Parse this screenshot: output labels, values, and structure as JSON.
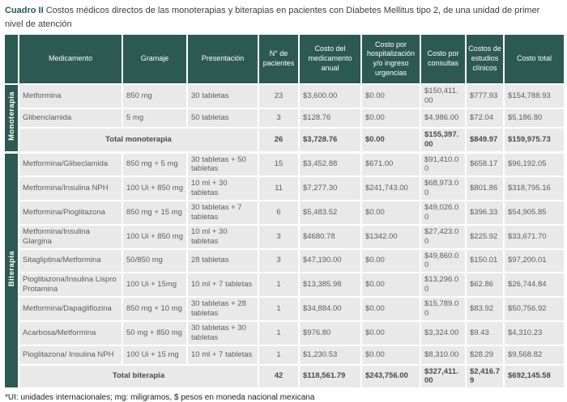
{
  "caption": {
    "label": "Cuadro II",
    "text": "Costos médicos directos de las monoterapias y biterapias en pacientes con Diabetes Mellitus tipo 2, de una unidad de primer nivel de atención"
  },
  "columns": [
    "Medicamento",
    "Gramaje",
    "Presentación",
    "N° de pacientes",
    "Costo del medicamento anual",
    "Costo por hospitalización y/o ingreso urgencias",
    "Costo por consultas",
    "Costos de estudios clínicos",
    "Costo total"
  ],
  "groups": [
    {
      "label": "Monoterapia",
      "rows": [
        {
          "medicamento": "Metformina",
          "gramaje": "850 mg",
          "presentacion": "30 tabletas",
          "pacientes": "23",
          "costo_medicamento": "$3,600.00",
          "costo_hospitalizacion": "$0.00",
          "costo_consultas": "$150,411.00",
          "costo_estudios": "$777.93",
          "costo_total": "$154,788.93"
        },
        {
          "medicamento": "Glibenclamida",
          "gramaje": "5 mg",
          "presentacion": "50 tabletas",
          "pacientes": "3",
          "costo_medicamento": "$128.76",
          "costo_hospitalizacion": "$0.00",
          "costo_consultas": "$4,986.00",
          "costo_estudios": "$72.04",
          "costo_total": "$5,186.80"
        }
      ],
      "total": {
        "label": "Total monoterapia",
        "pacientes": "26",
        "costo_medicamento": "$3,728.76",
        "costo_hospitalizacion": "$0.00",
        "costo_consultas": "$155,397.00",
        "costo_estudios": "$849.97",
        "costo_total": "$159,975.73"
      }
    },
    {
      "label": "Biterapia",
      "rows": [
        {
          "medicamento": "Metformina/Glibeclamida",
          "gramaje": "850 mg + 5 mg",
          "presentacion": "30 tabletas + 50 tabletas",
          "pacientes": "15",
          "costo_medicamento": "$3,452.88",
          "costo_hospitalizacion": "$671.00",
          "costo_consultas": "$91,410.00",
          "costo_estudios": "$658.17",
          "costo_total": "$96,192.05"
        },
        {
          "medicamento": "Metformina/Insulina NPH",
          "gramaje": "100 Ui + 850 mg",
          "presentacion": "10 ml + 30 tabletas",
          "pacientes": "11",
          "costo_medicamento": "$7,277.30",
          "costo_hospitalizacion": "$241,743.00",
          "costo_consultas": "$68,973.00",
          "costo_estudios": "$801.86",
          "costo_total": "$318,795.16"
        },
        {
          "medicamento": "Metformina/Pioglitazona",
          "gramaje": "850 mg + 15 mg",
          "presentacion": "30 tabletas + 7 tabletas",
          "pacientes": "6",
          "costo_medicamento": "$5,483.52",
          "costo_hospitalizacion": "$0.00",
          "costo_consultas": "$49,026.00",
          "costo_estudios": "$396.33",
          "costo_total": "$54,905.85"
        },
        {
          "medicamento": "Metformina/Insulina Glargina",
          "gramaje": "100 Ui + 850 mg",
          "presentacion": "10 ml + 30 tabletas",
          "pacientes": "3",
          "costo_medicamento": "$4680.78",
          "costo_hospitalizacion": "$1342.00",
          "costo_consultas": "$27,423.00",
          "costo_estudios": "$225.92",
          "costo_total": "$33,671.70"
        },
        {
          "medicamento": "Sitagliptina/Metformina",
          "gramaje": "50/850 mg",
          "presentacion": "28 tabletas",
          "pacientes": "3",
          "costo_medicamento": "$47,190.00",
          "costo_hospitalizacion": "$0.00",
          "costo_consultas": "$49,860.00",
          "costo_estudios": "$150.01",
          "costo_total": "$97,200.01"
        },
        {
          "medicamento": "Pioglitazona/Insulina Lispro Protamina",
          "gramaje": "100 Ui + 15mg",
          "presentacion": "10 ml + 7 tabletas",
          "pacientes": "1",
          "costo_medicamento": "$13,385.98",
          "costo_hospitalizacion": "$0.00",
          "costo_consultas": "$13,296.00",
          "costo_estudios": "$62.86",
          "costo_total": "$26,744.84"
        },
        {
          "medicamento": "Metformina/Dapagliflozina",
          "gramaje": "850 mg + 10 mg",
          "presentacion": "30 tabletas + 28 tabletas",
          "pacientes": "1",
          "costo_medicamento": "$34,884.00",
          "costo_hospitalizacion": "$0.00",
          "costo_consultas": "$15,789.00",
          "costo_estudios": "$83.92",
          "costo_total": "$50,756.92"
        },
        {
          "medicamento": "Acarbosa/Metformina",
          "gramaje": "50 mg + 850 mg",
          "presentacion": "30 tabletas + 30 tabletas",
          "pacientes": "1",
          "costo_medicamento": "$976.80",
          "costo_hospitalizacion": "$0.00",
          "costo_consultas": "$3,324.00",
          "costo_estudios": "$9.43",
          "costo_total": "$4,310.23"
        },
        {
          "medicamento": "Pioglitazona/ Insulina NPH",
          "gramaje": "100 Ui + 15 mg",
          "presentacion": "10 ml + 7 tabletas",
          "pacientes": "1",
          "costo_medicamento": "$1,230.53",
          "costo_hospitalizacion": "$0.00",
          "costo_consultas": "$8,310.00",
          "costo_estudios": "$28.29",
          "costo_total": "$9,568.82"
        }
      ],
      "total": {
        "label": "Total biterapia",
        "pacientes": "42",
        "costo_medicamento": "$118,561.79",
        "costo_hospitalizacion": "$243,756.00",
        "costo_consultas": "$327,411.00",
        "costo_estudios": "$2,416.79",
        "costo_total": "$692,145.58"
      }
    }
  ],
  "footnote": "*UI: unidades internacionales; mg: miligramos, $ pesos en moneda nacional mexicana",
  "colors": {
    "header_bg": "#2c5a52",
    "row_bg": "#e9e9e9",
    "accent_text": "#235b52"
  }
}
